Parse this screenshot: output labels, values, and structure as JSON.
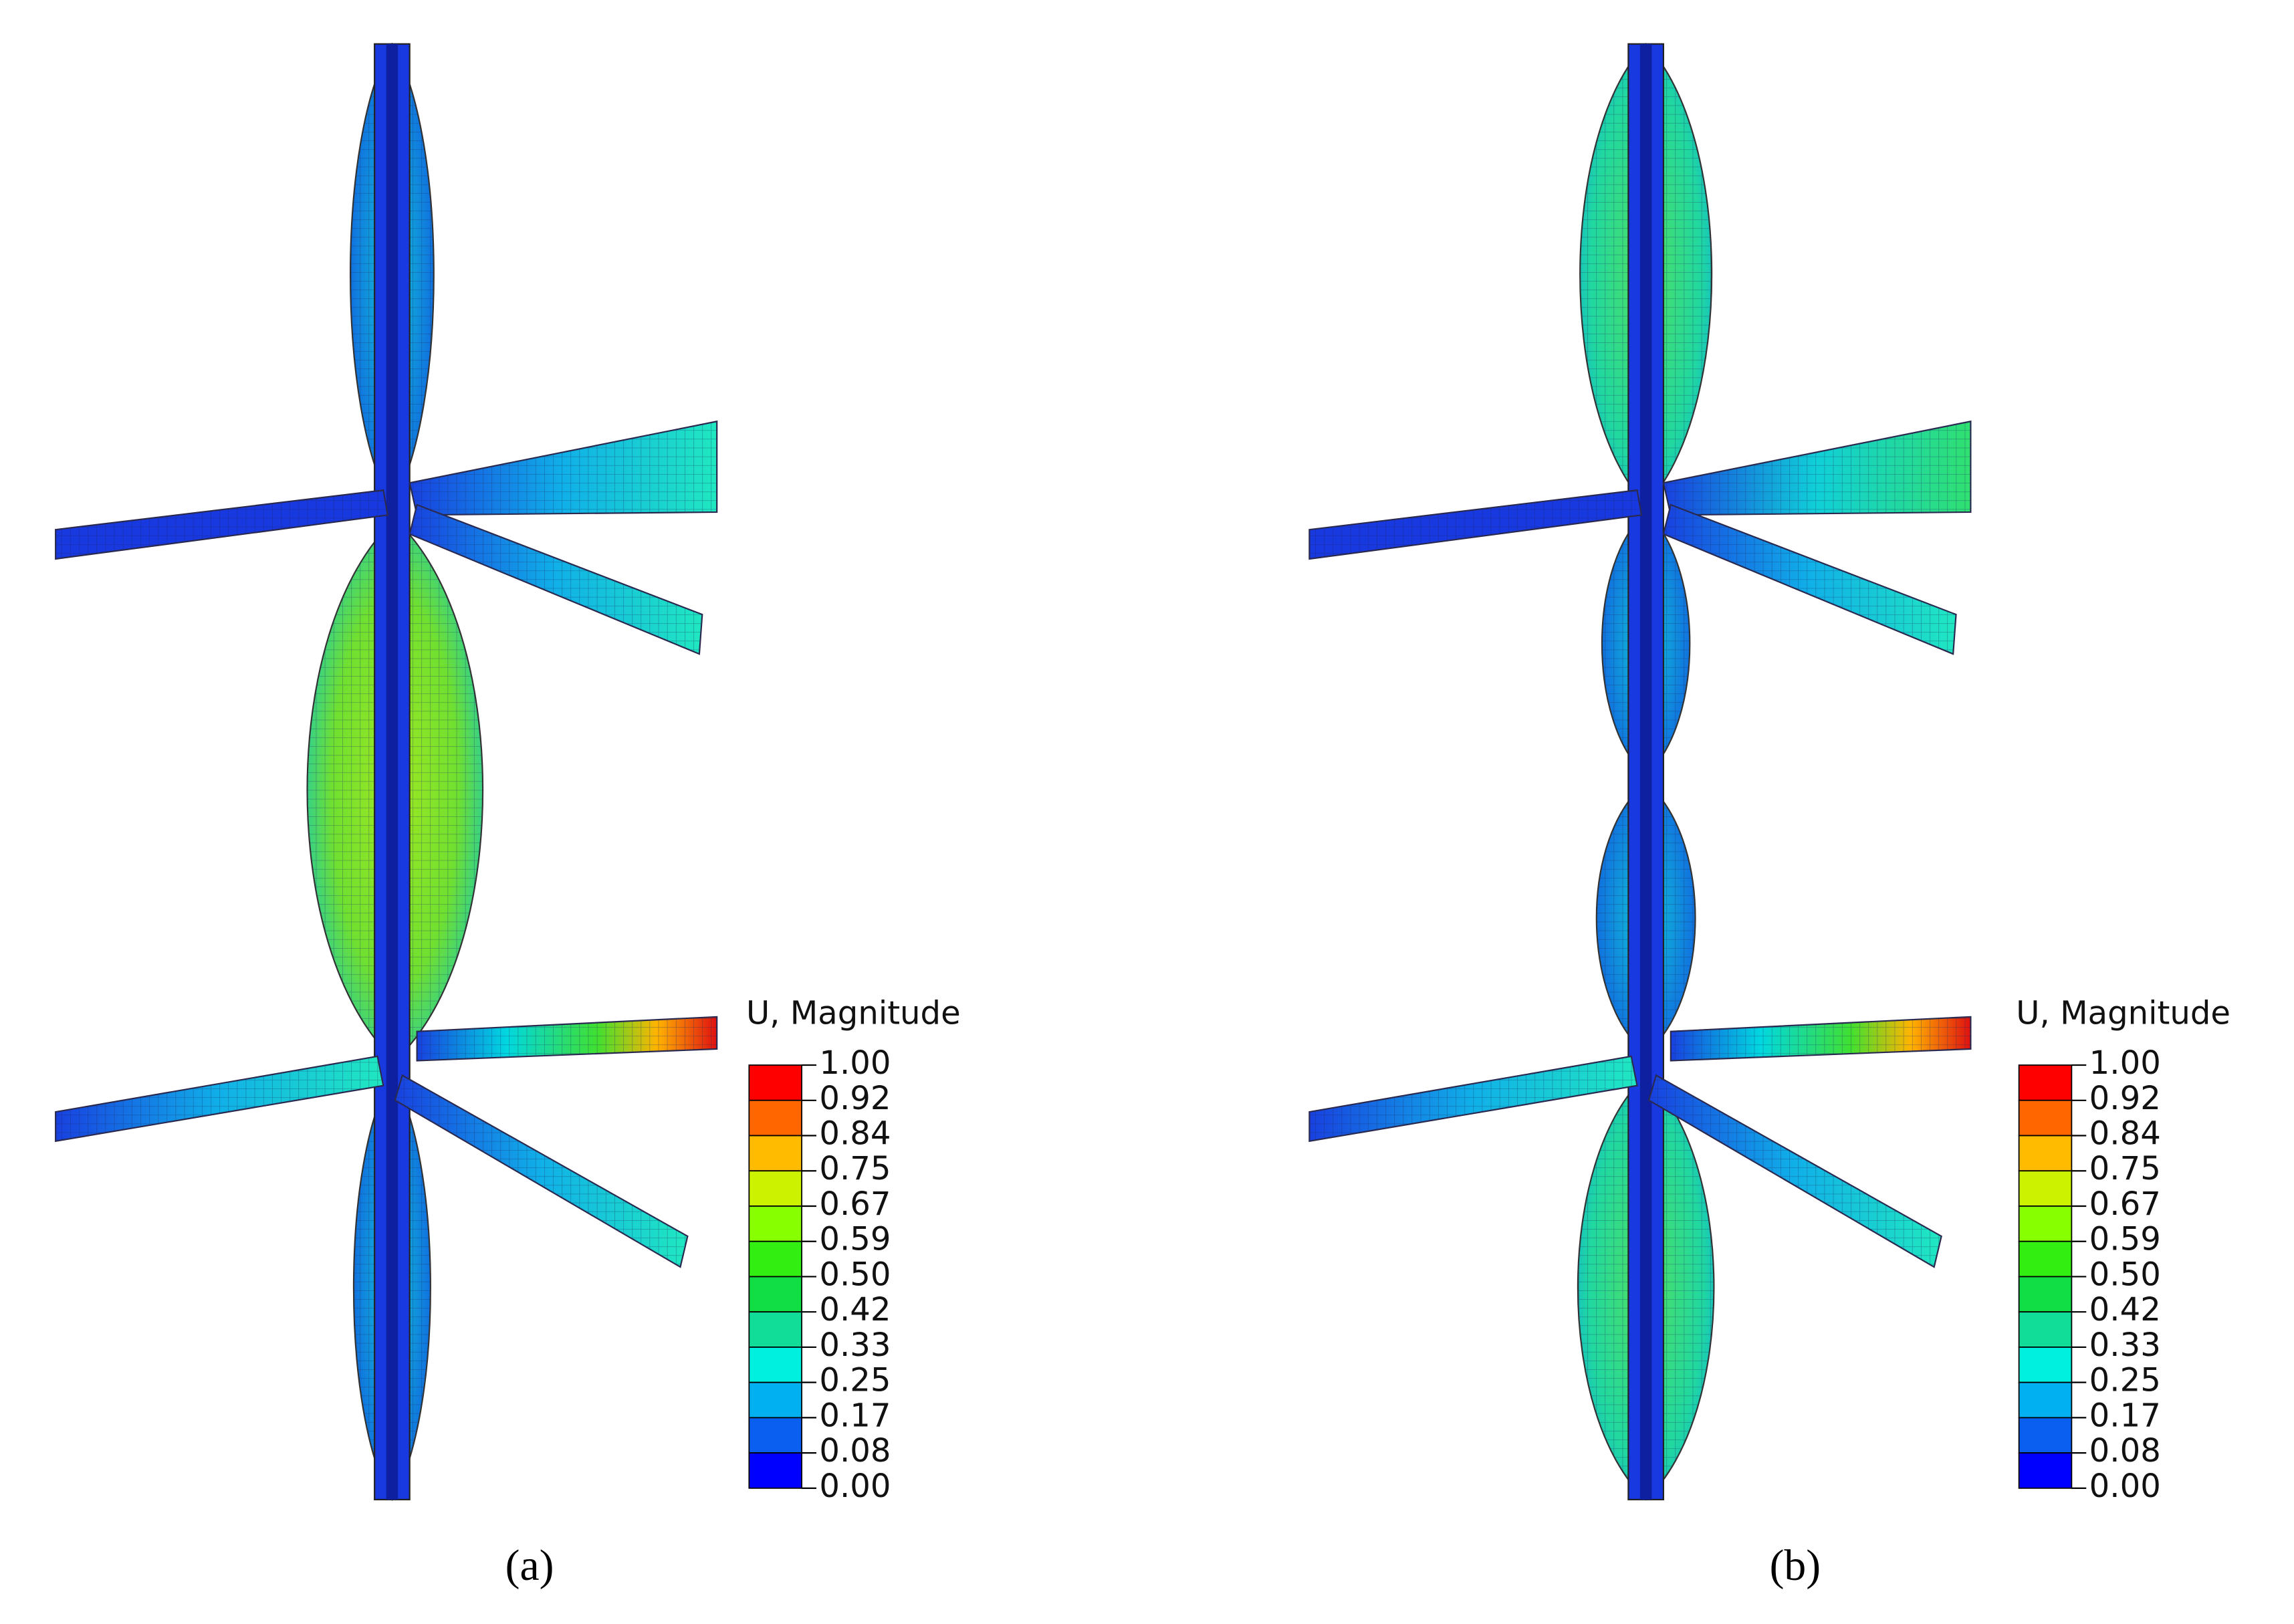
{
  "panels": [
    {
      "caption": "(a)",
      "legend": {
        "title": "U, Magnitude",
        "labels": [
          "1.00",
          "0.92",
          "0.84",
          "0.75",
          "0.67",
          "0.59",
          "0.50",
          "0.42",
          "0.33",
          "0.25",
          "0.17",
          "0.08",
          "0.00"
        ]
      }
    },
    {
      "caption": "(b)",
      "legend": {
        "title": "U, Magnitude",
        "labels": [
          "1.00",
          "0.92",
          "0.84",
          "0.75",
          "0.67",
          "0.59",
          "0.50",
          "0.42",
          "0.33",
          "0.25",
          "0.17",
          "0.08",
          "0.00"
        ]
      }
    }
  ]
}
